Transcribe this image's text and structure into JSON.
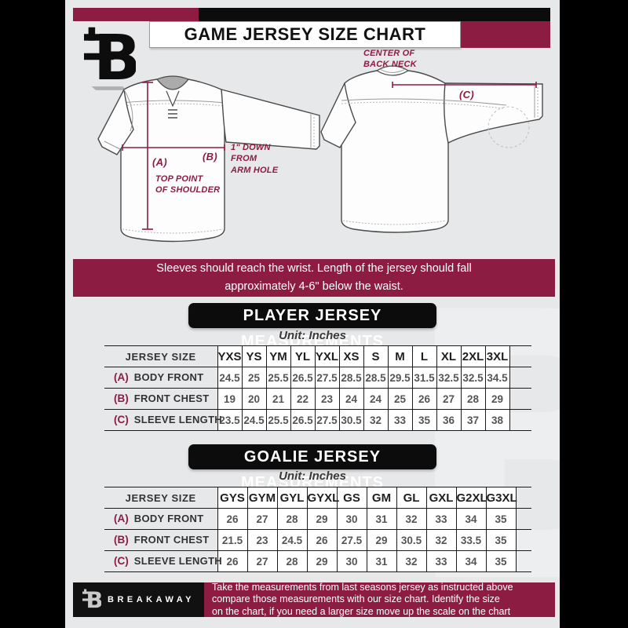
{
  "colors": {
    "maroon": "#8d1c42",
    "black": "#0c0c0c",
    "background": "#e7e8e9",
    "white": "#ffffff"
  },
  "header": {
    "title": "GAME JERSEY SIZE CHART",
    "logo_glyph": "B"
  },
  "diagrams": {
    "front": {
      "key_a": "(A)",
      "note_a": "TOP POINT\nOF SHOULDER",
      "key_b": "(B)",
      "note_b": "1\" DOWN\nFROM\nARM HOLE"
    },
    "back": {
      "key_c": "(C)",
      "note_c": "CENTER OF\nBACK NECK"
    }
  },
  "notice": "Sleeves should reach the wrist. Length of the jersey should fall\napproximately 4-6\" below the waist.",
  "sections": [
    {
      "heading": "PLAYER JERSEY MEASUREMENTS",
      "unit_label": "Unit: Inches",
      "table": {
        "corner_label": "JERSEY SIZE",
        "columns": [
          "YXS",
          "YS",
          "YM",
          "YL",
          "YXL",
          "XS",
          "S",
          "M",
          "L",
          "XL",
          "2XL",
          "3XL"
        ],
        "rows": [
          {
            "key": "(A)",
            "label": "BODY FRONT",
            "values": [
              "24.5",
              "25",
              "25.5",
              "26.5",
              "27.5",
              "28.5",
              "28.5",
              "29.5",
              "31.5",
              "32.5",
              "32.5",
              "34.5"
            ]
          },
          {
            "key": "(B)",
            "label": "FRONT CHEST",
            "values": [
              "19",
              "20",
              "21",
              "22",
              "23",
              "24",
              "24",
              "25",
              "26",
              "27",
              "28",
              "29"
            ]
          },
          {
            "key": "(C)",
            "label": "SLEEVE LENGTH",
            "values": [
              "23.5",
              "24.5",
              "25.5",
              "26.5",
              "27.5",
              "30.5",
              "32",
              "33",
              "35",
              "36",
              "37",
              "38"
            ]
          }
        ]
      }
    },
    {
      "heading": "GOALIE JERSEY MEASUREMENTS",
      "unit_label": "Unit: Inches",
      "table": {
        "corner_label": "JERSEY SIZE",
        "columns": [
          "GYS",
          "GYM",
          "GYL",
          "GYXL",
          "GS",
          "GM",
          "GL",
          "GXL",
          "G2XL",
          "G3XL"
        ],
        "rows": [
          {
            "key": "(A)",
            "label": "BODY FRONT",
            "values": [
              "26",
              "27",
              "28",
              "29",
              "30",
              "31",
              "32",
              "33",
              "34",
              "35"
            ]
          },
          {
            "key": "(B)",
            "label": "FRONT CHEST",
            "values": [
              "21.5",
              "23",
              "24.5",
              "26",
              "27.5",
              "29",
              "30.5",
              "32",
              "33.5",
              "35"
            ]
          },
          {
            "key": "(C)",
            "label": "SLEEVE LENGTH",
            "values": [
              "26",
              "27",
              "28",
              "29",
              "30",
              "31",
              "32",
              "33",
              "34",
              "35"
            ]
          }
        ]
      }
    }
  ],
  "footer": {
    "brand": "BREAKAWAY",
    "note": "Take the measurements from last seasons jersey as instructed above\ncompare those measurements  with our size chart. Identify the size\non the chart, if you need a larger size move up the scale on the chart"
  },
  "watermark_glyph": "B"
}
